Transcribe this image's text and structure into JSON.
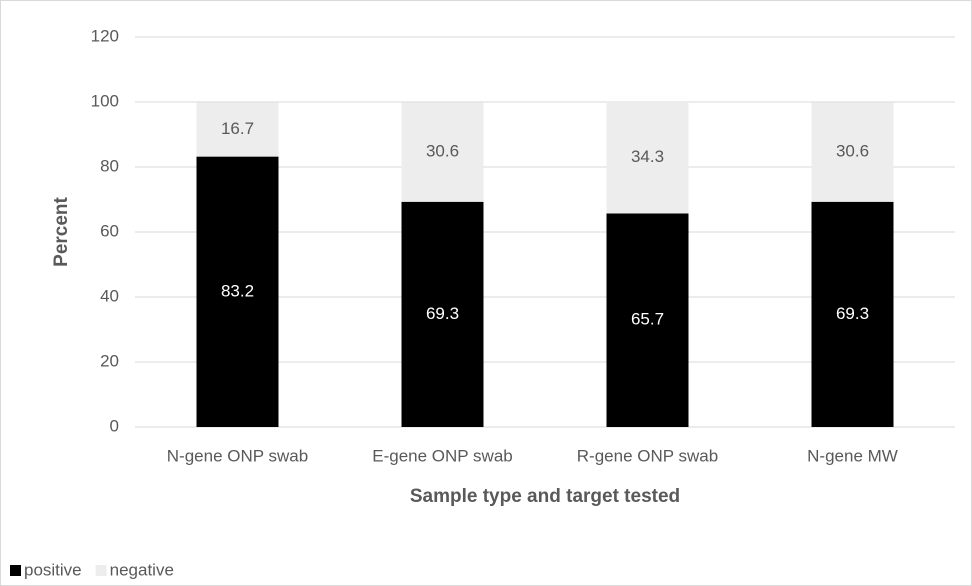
{
  "chart_data": {
    "type": "stacked_bar",
    "x_label": "Sample type and target tested",
    "y_label": "Percent",
    "categories": [
      "N-gene ONP swab",
      "E-gene ONP swab",
      "R-gene ONP swab",
      "N-gene MW"
    ],
    "series": [
      {
        "name": "positive",
        "color": "#000000",
        "label_color": "#ffffff",
        "values": [
          83.2,
          69.3,
          65.7,
          69.3
        ]
      },
      {
        "name": "negative",
        "color": "#ededed",
        "label_color": "#595959",
        "values": [
          16.7,
          30.6,
          34.3,
          30.6
        ]
      }
    ],
    "ylim": [
      0,
      120
    ],
    "yticks": [
      0,
      20,
      40,
      60,
      80,
      100,
      120
    ],
    "grid": true,
    "legend": "bottom-left"
  }
}
